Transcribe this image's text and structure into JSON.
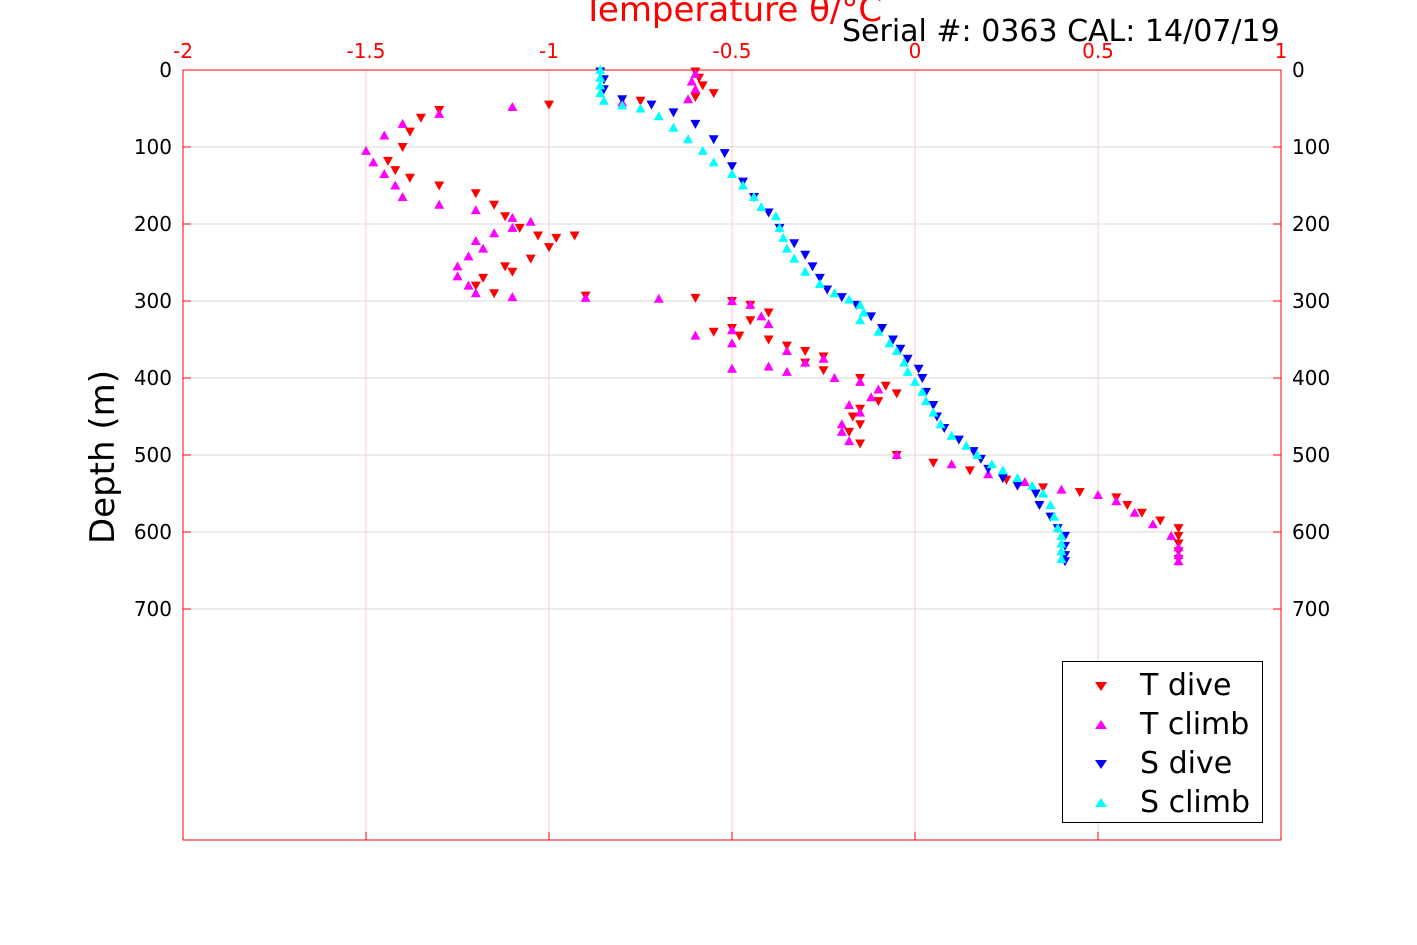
{
  "chart_data": {
    "type": "scatter",
    "title": "Temperature θ/°C",
    "annotation": "Serial #: 0363  CAL: 14/07/19",
    "xlabel": "Temperature θ/°C",
    "ylabel": "Depth (m)",
    "xlim": [
      -2,
      1
    ],
    "ylim": [
      0,
      1000
    ],
    "y_reversed": true,
    "x_axis_position": "top",
    "x_ticks": [
      "-2",
      "-1.5",
      "-1",
      "-0.5",
      "0",
      "0.5",
      "1"
    ],
    "y_ticks": [
      "0",
      "100",
      "200",
      "300",
      "400",
      "500",
      "600",
      "700"
    ],
    "grid": true,
    "legend_position": "bottom-right",
    "colors": {
      "axis": "#ff0000",
      "grid": "#d9d9d9",
      "x_grid": "#ffc8c8",
      "t_dive": "#ff0000",
      "t_climb": "#ff00ff",
      "s_dive": "#0000ff",
      "s_climb": "#00ffff"
    },
    "series": [
      {
        "name": "T dive",
        "marker": "triangle-down",
        "color": "#ff0000",
        "points": [
          [
            -0.6,
            2
          ],
          [
            -0.59,
            10
          ],
          [
            -0.58,
            20
          ],
          [
            -0.55,
            30
          ],
          [
            -0.6,
            35
          ],
          [
            -0.75,
            40
          ],
          [
            -1.0,
            45
          ],
          [
            -1.3,
            52
          ],
          [
            -1.35,
            62
          ],
          [
            -1.38,
            80
          ],
          [
            -1.4,
            100
          ],
          [
            -1.44,
            118
          ],
          [
            -1.42,
            130
          ],
          [
            -1.38,
            140
          ],
          [
            -1.3,
            150
          ],
          [
            -1.2,
            160
          ],
          [
            -1.15,
            175
          ],
          [
            -1.12,
            190
          ],
          [
            -1.08,
            205
          ],
          [
            -1.03,
            215
          ],
          [
            -0.98,
            218
          ],
          [
            -0.93,
            215
          ],
          [
            -1.0,
            230
          ],
          [
            -1.05,
            245
          ],
          [
            -1.12,
            255
          ],
          [
            -1.1,
            262
          ],
          [
            -1.18,
            270
          ],
          [
            -1.2,
            280
          ],
          [
            -1.15,
            290
          ],
          [
            -0.9,
            293
          ],
          [
            -0.6,
            296
          ],
          [
            -0.5,
            300
          ],
          [
            -0.45,
            305
          ],
          [
            -0.4,
            315
          ],
          [
            -0.45,
            325
          ],
          [
            -0.5,
            335
          ],
          [
            -0.55,
            340
          ],
          [
            -0.48,
            345
          ],
          [
            -0.4,
            350
          ],
          [
            -0.35,
            358
          ],
          [
            -0.3,
            365
          ],
          [
            -0.25,
            372
          ],
          [
            -0.3,
            380
          ],
          [
            -0.25,
            390
          ],
          [
            -0.15,
            400
          ],
          [
            -0.08,
            410
          ],
          [
            -0.05,
            420
          ],
          [
            -0.1,
            430
          ],
          [
            -0.15,
            440
          ],
          [
            -0.17,
            450
          ],
          [
            -0.15,
            460
          ],
          [
            -0.18,
            470
          ],
          [
            -0.15,
            485
          ],
          [
            -0.05,
            500
          ],
          [
            0.05,
            510
          ],
          [
            0.15,
            520
          ],
          [
            0.25,
            532
          ],
          [
            0.35,
            542
          ],
          [
            0.45,
            548
          ],
          [
            0.55,
            555
          ],
          [
            0.58,
            565
          ],
          [
            0.62,
            575
          ],
          [
            0.67,
            585
          ],
          [
            0.72,
            595
          ],
          [
            0.72,
            605
          ],
          [
            0.72,
            615
          ],
          [
            0.72,
            625
          ],
          [
            0.72,
            635
          ]
        ]
      },
      {
        "name": "T climb",
        "marker": "triangle-up",
        "color": "#ff00ff",
        "points": [
          [
            -0.6,
            5
          ],
          [
            -0.61,
            15
          ],
          [
            -0.6,
            25
          ],
          [
            -0.62,
            38
          ],
          [
            -0.8,
            42
          ],
          [
            -1.1,
            48
          ],
          [
            -1.3,
            57
          ],
          [
            -1.4,
            70
          ],
          [
            -1.45,
            85
          ],
          [
            -1.5,
            105
          ],
          [
            -1.48,
            120
          ],
          [
            -1.45,
            135
          ],
          [
            -1.42,
            150
          ],
          [
            -1.4,
            165
          ],
          [
            -1.3,
            175
          ],
          [
            -1.2,
            182
          ],
          [
            -1.1,
            192
          ],
          [
            -1.05,
            197
          ],
          [
            -1.1,
            205
          ],
          [
            -1.15,
            212
          ],
          [
            -1.2,
            222
          ],
          [
            -1.18,
            232
          ],
          [
            -1.22,
            242
          ],
          [
            -1.25,
            255
          ],
          [
            -1.25,
            268
          ],
          [
            -1.22,
            280
          ],
          [
            -1.2,
            290
          ],
          [
            -1.1,
            295
          ],
          [
            -0.9,
            296
          ],
          [
            -0.7,
            297
          ],
          [
            -0.5,
            300
          ],
          [
            -0.45,
            305
          ],
          [
            -0.42,
            320
          ],
          [
            -0.4,
            330
          ],
          [
            -0.5,
            338
          ],
          [
            -0.6,
            345
          ],
          [
            -0.5,
            355
          ],
          [
            -0.35,
            365
          ],
          [
            -0.25,
            375
          ],
          [
            -0.3,
            380
          ],
          [
            -0.4,
            385
          ],
          [
            -0.5,
            388
          ],
          [
            -0.35,
            392
          ],
          [
            -0.22,
            400
          ],
          [
            -0.15,
            405
          ],
          [
            -0.1,
            415
          ],
          [
            -0.12,
            425
          ],
          [
            -0.18,
            435
          ],
          [
            -0.15,
            445
          ],
          [
            -0.2,
            460
          ],
          [
            -0.2,
            470
          ],
          [
            -0.18,
            482
          ],
          [
            -0.05,
            500
          ],
          [
            0.1,
            512
          ],
          [
            0.2,
            525
          ],
          [
            0.3,
            535
          ],
          [
            0.4,
            545
          ],
          [
            0.5,
            552
          ],
          [
            0.55,
            560
          ],
          [
            0.6,
            575
          ],
          [
            0.65,
            590
          ],
          [
            0.7,
            605
          ],
          [
            0.72,
            620
          ],
          [
            0.72,
            630
          ],
          [
            0.72,
            638
          ]
        ]
      },
      {
        "name": "S dive",
        "marker": "triangle-down",
        "color": "#0000ff",
        "points": [
          [
            -0.86,
            2
          ],
          [
            -0.85,
            12
          ],
          [
            -0.85,
            25
          ],
          [
            -0.8,
            38
          ],
          [
            -0.72,
            45
          ],
          [
            -0.66,
            55
          ],
          [
            -0.6,
            70
          ],
          [
            -0.55,
            90
          ],
          [
            -0.52,
            108
          ],
          [
            -0.5,
            125
          ],
          [
            -0.47,
            145
          ],
          [
            -0.44,
            165
          ],
          [
            -0.4,
            185
          ],
          [
            -0.37,
            205
          ],
          [
            -0.33,
            225
          ],
          [
            -0.3,
            240
          ],
          [
            -0.28,
            255
          ],
          [
            -0.26,
            270
          ],
          [
            -0.24,
            285
          ],
          [
            -0.2,
            295
          ],
          [
            -0.16,
            305
          ],
          [
            -0.12,
            320
          ],
          [
            -0.09,
            335
          ],
          [
            -0.06,
            350
          ],
          [
            -0.04,
            362
          ],
          [
            -0.02,
            375
          ],
          [
            0.01,
            388
          ],
          [
            0.02,
            400
          ],
          [
            0.03,
            418
          ],
          [
            0.05,
            435
          ],
          [
            0.06,
            450
          ],
          [
            0.08,
            465
          ],
          [
            0.12,
            480
          ],
          [
            0.16,
            495
          ],
          [
            0.18,
            505
          ],
          [
            0.2,
            518
          ],
          [
            0.24,
            530
          ],
          [
            0.28,
            540
          ],
          [
            0.33,
            550
          ],
          [
            0.34,
            565
          ],
          [
            0.37,
            580
          ],
          [
            0.39,
            595
          ],
          [
            0.41,
            605
          ],
          [
            0.41,
            618
          ],
          [
            0.41,
            630
          ],
          [
            0.41,
            638
          ]
        ]
      },
      {
        "name": "S climb",
        "marker": "triangle-up",
        "color": "#00ffff",
        "points": [
          [
            -0.86,
            0
          ],
          [
            -0.86,
            10
          ],
          [
            -0.86,
            20
          ],
          [
            -0.86,
            30
          ],
          [
            -0.85,
            40
          ],
          [
            -0.8,
            46
          ],
          [
            -0.75,
            50
          ],
          [
            -0.7,
            60
          ],
          [
            -0.66,
            75
          ],
          [
            -0.62,
            90
          ],
          [
            -0.58,
            105
          ],
          [
            -0.55,
            120
          ],
          [
            -0.5,
            135
          ],
          [
            -0.47,
            150
          ],
          [
            -0.44,
            165
          ],
          [
            -0.42,
            178
          ],
          [
            -0.38,
            190
          ],
          [
            -0.37,
            205
          ],
          [
            -0.36,
            218
          ],
          [
            -0.35,
            232
          ],
          [
            -0.33,
            245
          ],
          [
            -0.3,
            262
          ],
          [
            -0.26,
            278
          ],
          [
            -0.22,
            290
          ],
          [
            -0.18,
            298
          ],
          [
            -0.15,
            305
          ],
          [
            -0.14,
            315
          ],
          [
            -0.15,
            325
          ],
          [
            -0.1,
            340
          ],
          [
            -0.07,
            355
          ],
          [
            -0.05,
            365
          ],
          [
            -0.03,
            380
          ],
          [
            -0.02,
            392
          ],
          [
            0.0,
            405
          ],
          [
            0.02,
            418
          ],
          [
            0.03,
            430
          ],
          [
            0.05,
            445
          ],
          [
            0.07,
            460
          ],
          [
            0.1,
            475
          ],
          [
            0.14,
            488
          ],
          [
            0.17,
            500
          ],
          [
            0.21,
            512
          ],
          [
            0.24,
            520
          ],
          [
            0.28,
            530
          ],
          [
            0.32,
            540
          ],
          [
            0.35,
            550
          ],
          [
            0.37,
            565
          ],
          [
            0.38,
            580
          ],
          [
            0.39,
            595
          ],
          [
            0.4,
            605
          ],
          [
            0.4,
            615
          ],
          [
            0.4,
            625
          ],
          [
            0.4,
            635
          ]
        ]
      }
    ]
  }
}
